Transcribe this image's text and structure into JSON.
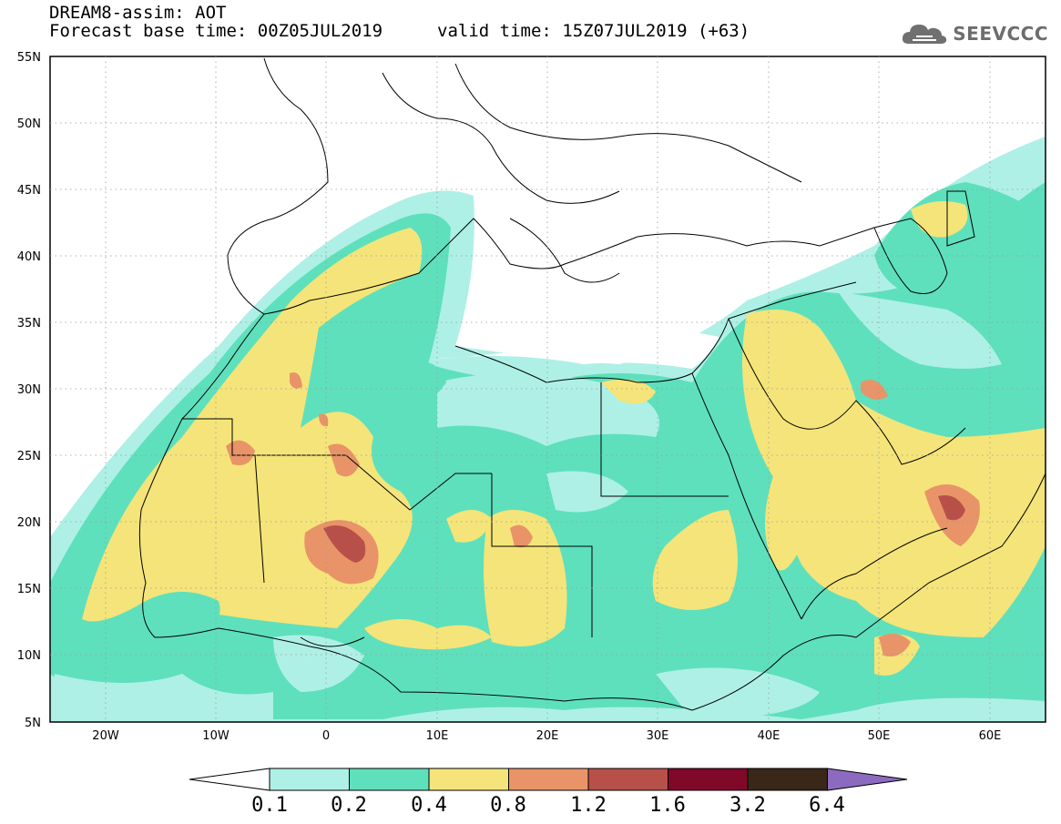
{
  "header": {
    "title": "DREAM8-assim: AOT",
    "base_time": "Forecast base time: 00Z05JUL2019",
    "valid_time": "valid time: 15Z07JUL2019 (+63)"
  },
  "logo": {
    "text": "SEEVCCC",
    "icon": "cloud-icon"
  },
  "map": {
    "lat_labels": [
      "55N",
      "50N",
      "45N",
      "40N",
      "35N",
      "30N",
      "25N",
      "20N",
      "15N",
      "10N",
      "5N"
    ],
    "lon_labels": [
      "20W",
      "10W",
      "0",
      "10E",
      "20E",
      "30E",
      "40E",
      "50E",
      "60E"
    ],
    "lat_range": [
      5,
      55
    ],
    "lon_range": [
      -25,
      65
    ]
  },
  "colorbar": {
    "labels": [
      "0.1",
      "0.2",
      "0.4",
      "0.8",
      "1.2",
      "1.6",
      "3.2",
      "6.4"
    ],
    "colors": [
      "#aef0e6",
      "#5ee0bc",
      "#f5e47a",
      "#e89468",
      "#b8504a",
      "#800828",
      "#3a2718",
      "#8c6ac0"
    ]
  }
}
